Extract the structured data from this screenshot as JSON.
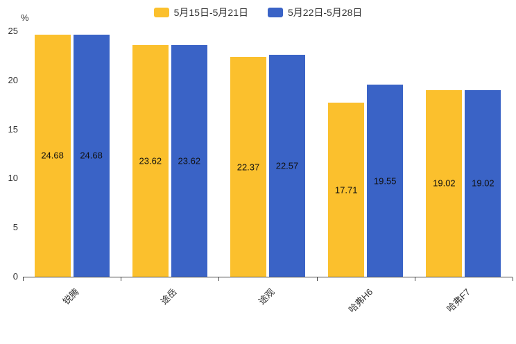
{
  "chart_data": {
    "type": "bar",
    "title": "",
    "categories": [
      "锐腾",
      "途岳",
      "途观",
      "哈弗H6",
      "哈弗F7"
    ],
    "series": [
      {
        "name": "5月15日-5月21日",
        "color": "#FBC02D",
        "values": [
          24.68,
          23.62,
          22.37,
          17.71,
          19.02
        ]
      },
      {
        "name": "5月22日-5月28日",
        "color": "#3A63C6",
        "values": [
          24.68,
          23.62,
          22.57,
          19.55,
          19.02
        ]
      }
    ],
    "xlabel": "",
    "ylabel": "%",
    "ylim": [
      0,
      25
    ],
    "yticks": [
      0,
      5,
      10,
      15,
      20,
      25
    ],
    "grid": false,
    "legend_position": "top",
    "value_labels_visible": true,
    "axis_color": "#444444",
    "text_color": "#333333"
  }
}
